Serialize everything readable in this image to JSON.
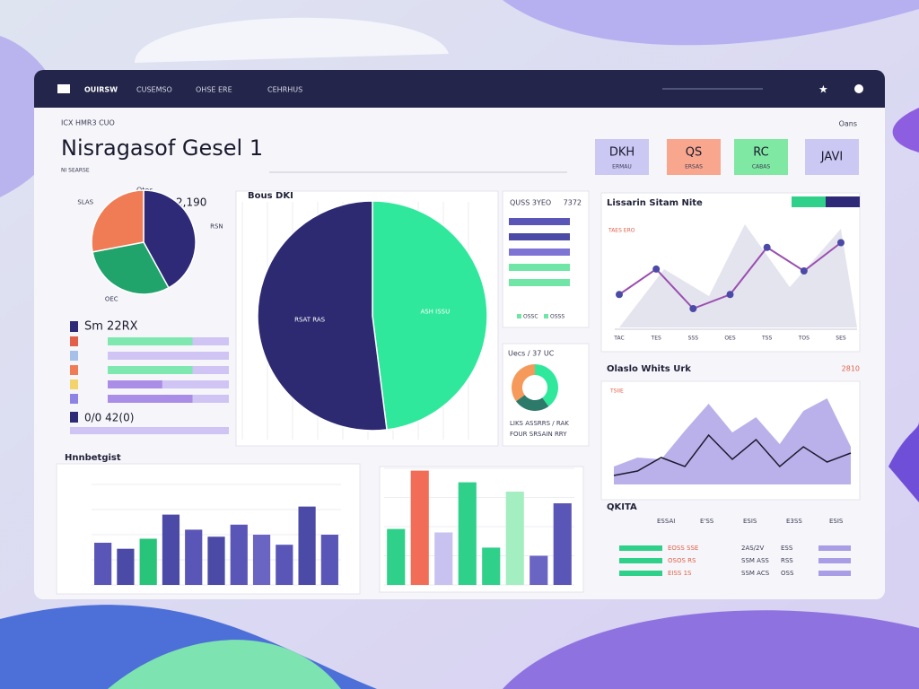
{
  "nav": {
    "brand": "OUIRSW",
    "items": [
      "CUSEMSO",
      "OHSE ERE",
      "CEHRHUS"
    ]
  },
  "header": {
    "eyebrow": "ICX HMR3 CUO",
    "title": "Nisragasof Gesel 1",
    "subtitle": "NI SEARSE",
    "action": "Oans",
    "buttons": [
      {
        "label": "DKH",
        "sub": "ERMAU",
        "color": "#cbc8f3"
      },
      {
        "label": "QS",
        "sub": "ERSAS",
        "color": "#f8a68e"
      },
      {
        "label": "RC",
        "sub": "CABAS",
        "color": "#7fe8a2"
      },
      {
        "label": "JAVI",
        "color": "#cbc8f3"
      }
    ]
  },
  "pie_small": {
    "label": "Otes",
    "total": "2,190",
    "slices": [
      {
        "name": "RSN",
        "value": 42,
        "color": "#2e2a78"
      },
      {
        "name": "OEC",
        "value": 30,
        "color": "#21a46c"
      },
      {
        "name": "SLAS",
        "value": 28,
        "color": "#f07c55"
      }
    ]
  },
  "progress": {
    "title": "Sm 22RX",
    "footer": "0/0 42(0)",
    "xlim": [
      0,
      100
    ],
    "rows": [
      {
        "value": 70,
        "color": "#7fe8b0",
        "icon": "#e2604a"
      },
      {
        "value": 0,
        "color": "#7fe8b0",
        "icon": "#a6c0ea"
      },
      {
        "value": 70,
        "color": "#7fe8b0",
        "icon": "#f07c55"
      },
      {
        "value": 45,
        "color": "#a98de6",
        "icon": "#f3d36b"
      },
      {
        "value": 70,
        "color": "#a98de6",
        "icon": "#8d84e6"
      }
    ]
  },
  "pie_big": {
    "title": "Bous DKI",
    "slices": [
      {
        "name": "ASH ISSU",
        "value": 48,
        "color": "#2fe89b"
      },
      {
        "name": "RSAT RAS",
        "value": 52,
        "color": "#2d2a72"
      }
    ]
  },
  "hbars": {
    "title": "QUSS 3YEO",
    "note": "7372",
    "xlim": [
      0,
      70
    ],
    "values": [
      68,
      68,
      68,
      68,
      68
    ],
    "colors": [
      "#5a56b8",
      "#4b4aa6",
      "#7e74d6",
      "#6fe6a6",
      "#6fe6a6"
    ],
    "legend": [
      "OSSC",
      "OSSS"
    ]
  },
  "donut": {
    "title": "Uecs / 37 UC",
    "values": [
      40,
      25,
      35
    ],
    "colors": [
      "#2fe89b",
      "#2d7a6a",
      "#f59a5b"
    ],
    "caption": [
      "LIKS ASSRRS / RAK",
      "FOUR SRSAIN RRY"
    ]
  },
  "line": {
    "title": "Lissarin Sitam Nite",
    "ylabel": "TAES ERO",
    "categories": [
      "TAC",
      "TES",
      "SSS",
      "OES",
      "TSS",
      "TOS",
      "SES"
    ],
    "values": [
      35,
      62,
      20,
      35,
      85,
      60,
      90
    ],
    "ylim": [
      0,
      100
    ],
    "color": "#9b4fb0"
  },
  "area": {
    "title": "Olaslo Whits Urk",
    "badge": "2810",
    "axis": "TSIIE",
    "ylim": [
      0,
      100
    ],
    "area": [
      20,
      30,
      28,
      60,
      90,
      58,
      75,
      45,
      82,
      96,
      42
    ],
    "line": [
      10,
      15,
      30,
      20,
      55,
      28,
      50,
      20,
      42,
      25,
      35
    ],
    "area_color": "#a99de6",
    "line_color": "#1c1b2e"
  },
  "bars1": {
    "title": "Hnnbetgist",
    "ylim": [
      0,
      100
    ],
    "values": [
      42,
      36,
      46,
      70,
      55,
      48,
      60,
      50,
      40,
      78,
      50
    ],
    "colors": [
      "#5a56b8",
      "#4b4aa6",
      "#27c47a",
      "#4b4aa6",
      "#5a56b8",
      "#4b4aa6",
      "#5a56b8",
      "#6a64c2",
      "#5a56b8",
      "#4b4aa6",
      "#5a56b8"
    ]
  },
  "bars2": {
    "ylim": [
      0,
      100
    ],
    "values": [
      48,
      98,
      45,
      88,
      32,
      80,
      25,
      70
    ],
    "colors": [
      "#2fd08a",
      "#f26d57",
      "#c8c2f0",
      "#2fd08a",
      "#2fd08a",
      "#a4efc2",
      "#6a64c2",
      "#5a56b8"
    ]
  },
  "table": {
    "title": "QKITA",
    "columns": [
      "ESSAI",
      "E'SS",
      "ESIS",
      "E3SS",
      "ESIS"
    ],
    "rows": [
      [
        "EOSS SSE",
        "2AS/2V",
        "ESS"
      ],
      [
        "OSOS RS",
        "SSM ASS",
        "RSS"
      ],
      [
        "EISS 1S",
        "SSM ACS",
        "OSS"
      ]
    ]
  }
}
